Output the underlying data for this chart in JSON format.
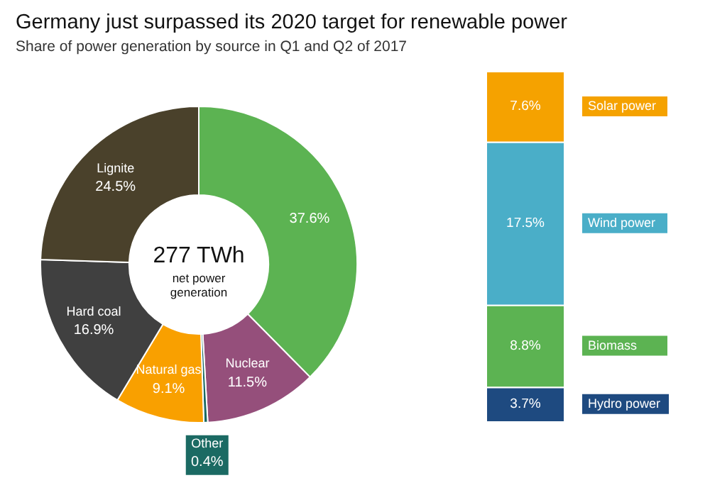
{
  "chart_data": [
    {
      "type": "donut",
      "title": "Germany just surpassed its 2020 target for renewable power",
      "subtitle": "Share of power generation by source in Q1 and Q2 of 2017",
      "categories": [
        null,
        "Nuclear",
        "Other",
        "Natural gas",
        "Hard coal",
        "Lignite"
      ],
      "values": [
        37.6,
        11.5,
        0.4,
        9.1,
        16.9,
        24.5
      ],
      "value_labels": [
        "37.6%",
        "11.5%",
        "0.4%",
        "9.1%",
        "16.9%",
        "24.5%"
      ],
      "colors": [
        "#5cb352",
        "#954f7b",
        "#1b6a63",
        "#f9a000",
        "#404040",
        "#4a412b"
      ],
      "annotations": [
        "277 TWh",
        "net power generation"
      ]
    },
    {
      "type": "bar",
      "stacked": true,
      "categories": [
        null
      ],
      "series": [
        {
          "name": "Hydro power",
          "color": "#1e4a80",
          "values": [
            3.7
          ],
          "value_labels": [
            "3.7%"
          ]
        },
        {
          "name": "Biomass",
          "color": "#5cb352",
          "values": [
            8.8
          ],
          "value_labels": [
            "8.8%"
          ]
        },
        {
          "name": "Wind power",
          "color": "#4aaec8",
          "values": [
            17.5
          ],
          "value_labels": [
            "17.5%"
          ]
        },
        {
          "name": "Solar power",
          "color": "#f5a200",
          "values": [
            7.6
          ],
          "value_labels": [
            "7.6%"
          ]
        }
      ]
    }
  ]
}
